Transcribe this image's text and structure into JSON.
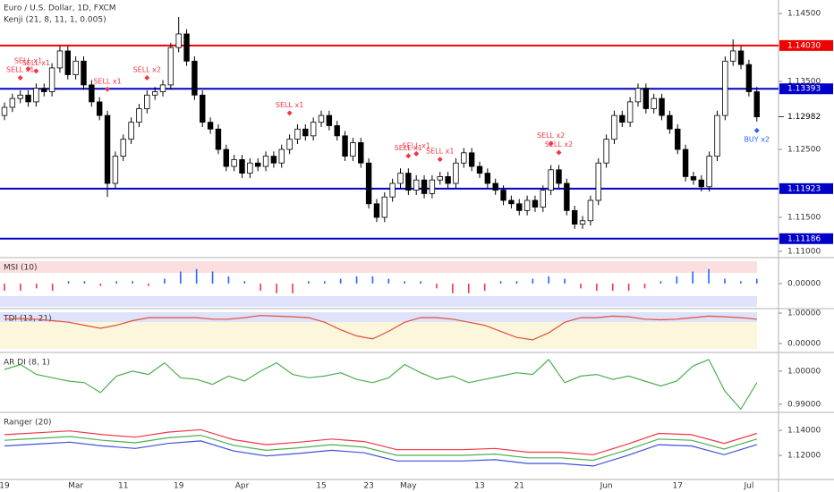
{
  "chart_data": [
    {
      "type": "candlestick",
      "title": "Euro / U.S. Dollar, 1D, FXCM",
      "subtitle": "Kenji (21, 8, 11, 1, 0.005)",
      "categories": [
        "19",
        null,
        null,
        null,
        null,
        null,
        null,
        null,
        null,
        "Mar",
        null,
        null,
        null,
        null,
        null,
        "11",
        null,
        null,
        null,
        null,
        null,
        null,
        "19",
        null,
        null,
        null,
        null,
        null,
        null,
        null,
        "Apr",
        null,
        null,
        null,
        null,
        null,
        null,
        null,
        null,
        null,
        "15",
        null,
        null,
        null,
        null,
        null,
        "23",
        null,
        null,
        null,
        null,
        "May",
        null,
        null,
        null,
        null,
        null,
        null,
        null,
        null,
        "13",
        null,
        null,
        null,
        null,
        "21",
        null,
        null,
        null,
        null,
        null,
        null,
        null,
        null,
        null,
        null,
        "Jun",
        null,
        null,
        null,
        null,
        null,
        null,
        null,
        null,
        "17",
        null,
        null,
        null,
        null,
        null,
        null,
        null,
        null,
        "Jul",
        null
      ],
      "open": [
        1.13,
        1.1312,
        1.1325,
        1.133,
        1.132,
        1.134,
        1.1335,
        1.137,
        1.1395,
        1.136,
        1.138,
        1.1345,
        1.132,
        1.13,
        1.12,
        1.124,
        1.1265,
        1.129,
        1.131,
        1.133,
        1.1335,
        1.1345,
        1.14,
        1.142,
        1.138,
        1.133,
        1.129,
        1.128,
        1.125,
        1.1225,
        1.1235,
        1.1215,
        1.123,
        1.1225,
        1.124,
        1.123,
        1.125,
        1.1265,
        1.128,
        1.127,
        1.129,
        1.13,
        1.1285,
        1.127,
        1.124,
        1.126,
        1.123,
        1.117,
        1.115,
        1.118,
        1.12,
        1.1215,
        1.119,
        1.1205,
        1.1185,
        1.1205,
        1.121,
        1.12,
        1.123,
        1.1245,
        1.1225,
        1.1215,
        1.12,
        1.119,
        1.1175,
        1.117,
        1.116,
        1.1175,
        1.1165,
        1.119,
        1.122,
        1.12,
        1.116,
        1.114,
        1.1145,
        1.1175,
        1.123,
        1.1265,
        1.13,
        1.129,
        1.132,
        1.134,
        1.131,
        1.1325,
        1.13,
        1.128,
        1.125,
        1.121,
        1.1205,
        1.1195,
        1.124,
        1.13,
        1.138,
        1.1395,
        1.1375,
        1.1335
      ],
      "high": [
        1.1319,
        1.1332,
        1.1337,
        1.1337,
        1.1347,
        1.1347,
        1.1377,
        1.1402,
        1.1402,
        1.1387,
        1.1387,
        1.1352,
        1.1327,
        1.1307,
        1.1247,
        1.1272,
        1.1297,
        1.1317,
        1.1337,
        1.1342,
        1.1352,
        1.1407,
        1.1445,
        1.1427,
        1.1387,
        1.1337,
        1.1297,
        1.1287,
        1.1257,
        1.1242,
        1.1242,
        1.1237,
        1.1237,
        1.1247,
        1.1247,
        1.1257,
        1.1272,
        1.1287,
        1.1287,
        1.1297,
        1.1307,
        1.1307,
        1.1292,
        1.1277,
        1.1267,
        1.1267,
        1.1237,
        1.1177,
        1.1187,
        1.1207,
        1.1222,
        1.1222,
        1.1212,
        1.1212,
        1.1212,
        1.1217,
        1.1217,
        1.1237,
        1.1252,
        1.1252,
        1.1232,
        1.1222,
        1.1207,
        1.1197,
        1.1182,
        1.1177,
        1.1182,
        1.1182,
        1.1197,
        1.1227,
        1.1227,
        1.1207,
        1.1167,
        1.1152,
        1.1182,
        1.1237,
        1.1272,
        1.1307,
        1.1307,
        1.1327,
        1.1347,
        1.1347,
        1.1332,
        1.1332,
        1.1307,
        1.1287,
        1.1257,
        1.1217,
        1.1212,
        1.1247,
        1.1307,
        1.1387,
        1.1412,
        1.1402,
        1.1382,
        1.1342
      ],
      "low": [
        1.1293,
        1.1305,
        1.1318,
        1.1313,
        1.1313,
        1.1328,
        1.1328,
        1.1363,
        1.1353,
        1.1353,
        1.1338,
        1.1313,
        1.1293,
        1.118,
        1.1193,
        1.1233,
        1.1258,
        1.1283,
        1.1303,
        1.1323,
        1.1328,
        1.1338,
        1.1393,
        1.1373,
        1.1323,
        1.1283,
        1.1273,
        1.1243,
        1.1218,
        1.1218,
        1.1208,
        1.1208,
        1.1218,
        1.1218,
        1.1223,
        1.1223,
        1.1243,
        1.1258,
        1.1263,
        1.1263,
        1.1283,
        1.1278,
        1.1263,
        1.1233,
        1.1233,
        1.1223,
        1.1163,
        1.1143,
        1.1143,
        1.1173,
        1.1193,
        1.1183,
        1.1183,
        1.1178,
        1.1178,
        1.1198,
        1.1193,
        1.1193,
        1.1223,
        1.1218,
        1.1208,
        1.1193,
        1.1183,
        1.1168,
        1.1163,
        1.1153,
        1.1153,
        1.1158,
        1.1158,
        1.1183,
        1.1193,
        1.1153,
        1.1133,
        1.1133,
        1.1138,
        1.1168,
        1.1223,
        1.1258,
        1.1283,
        1.1283,
        1.1313,
        1.1303,
        1.1303,
        1.1293,
        1.1273,
        1.1243,
        1.1203,
        1.1198,
        1.1188,
        1.1188,
        1.1233,
        1.1293,
        1.1373,
        1.1368,
        1.1328,
        1.1291
      ],
      "close": [
        1.1312,
        1.1325,
        1.133,
        1.132,
        1.134,
        1.1335,
        1.137,
        1.1395,
        1.136,
        1.138,
        1.1345,
        1.132,
        1.13,
        1.12,
        1.124,
        1.1265,
        1.129,
        1.131,
        1.133,
        1.1335,
        1.1345,
        1.14,
        1.142,
        1.138,
        1.133,
        1.129,
        1.128,
        1.125,
        1.1225,
        1.1235,
        1.1215,
        1.123,
        1.1225,
        1.124,
        1.123,
        1.125,
        1.1265,
        1.128,
        1.127,
        1.129,
        1.13,
        1.1285,
        1.127,
        1.124,
        1.126,
        1.123,
        1.117,
        1.115,
        1.118,
        1.12,
        1.1215,
        1.119,
        1.1205,
        1.1185,
        1.1205,
        1.121,
        1.12,
        1.123,
        1.1245,
        1.1225,
        1.1215,
        1.12,
        1.119,
        1.1175,
        1.117,
        1.116,
        1.1175,
        1.1165,
        1.119,
        1.122,
        1.12,
        1.116,
        1.114,
        1.1145,
        1.1175,
        1.123,
        1.1265,
        1.13,
        1.129,
        1.132,
        1.134,
        1.131,
        1.1325,
        1.13,
        1.128,
        1.125,
        1.121,
        1.1205,
        1.1195,
        1.124,
        1.13,
        1.138,
        1.1395,
        1.1375,
        1.1335,
        1.1298
      ],
      "up_color": "#ffffff",
      "down_color": "#000000",
      "ylim": [
        1.1092,
        1.147
      ],
      "yticks": [
        {
          "value": 1.145,
          "label": "1.14500"
        },
        {
          "value": 1.135,
          "label": "1.13500"
        },
        {
          "value": 1.125,
          "label": "1.12500"
        },
        {
          "value": 1.115,
          "label": "1.11500"
        },
        {
          "value": 1.11,
          "label": "1.11000"
        }
      ],
      "levels": [
        {
          "value": 1.1403,
          "label": "1.14030",
          "color": "#f00000"
        },
        {
          "value": 1.13393,
          "label": "1.13393",
          "color": "#0000c8"
        },
        {
          "value": 1.11923,
          "label": "1.11923",
          "color": "#0000c8"
        },
        {
          "value": 1.11186,
          "label": "1.11186",
          "color": "#0000c8"
        }
      ],
      "last_price": {
        "value": 1.12982,
        "label": "1.12982"
      },
      "signals": [
        {
          "text": "SELL x1",
          "bar": 2,
          "color": "#f23645"
        },
        {
          "text": "SELL x1",
          "bar": 3,
          "color": "#f23645"
        },
        {
          "text": "SELL x1",
          "bar": 4,
          "color": "#f23645"
        },
        {
          "text": "SELL x1",
          "bar": 13,
          "color": "#f23645"
        },
        {
          "text": "SELL x2",
          "bar": 18,
          "color": "#f23645"
        },
        {
          "text": "SELL x1",
          "bar": 36,
          "color": "#f23645"
        },
        {
          "text": "SELL x1",
          "bar": 51,
          "color": "#f23645"
        },
        {
          "text": "SELL x1",
          "bar": 52,
          "color": "#f23645"
        },
        {
          "text": "SELL x1",
          "bar": 55,
          "color": "#f23645"
        },
        {
          "text": "SELL x2",
          "bar": 69,
          "color": "#f23645"
        },
        {
          "text": "SELL x2",
          "bar": 70,
          "color": "#f23645"
        },
        {
          "text": "BUY x2",
          "bar": 95,
          "color": "#2962ff"
        }
      ]
    },
    {
      "type": "bar",
      "title": "MSI (10)",
      "ylim": [
        -1,
        1
      ],
      "yticks": [
        {
          "value": 0,
          "label": "0.00000"
        }
      ],
      "up_color": "#2962ff",
      "down_color": "#f23645",
      "values": [
        -0.3,
        -0.3,
        -0.2,
        -0.3,
        0.1,
        0.1,
        -0.1,
        0.1,
        0.1,
        -0.1,
        0.2,
        0.5,
        0.6,
        0.5,
        0.3,
        0.1,
        -0.3,
        -0.4,
        -0.4,
        0.1,
        0.1,
        0.2,
        0.3,
        0.3,
        0.2,
        0.1,
        0.1,
        -0.2,
        -0.4,
        -0.4,
        -0.3,
        0.1,
        0.1,
        0.2,
        0.3,
        0.2,
        -0.2,
        -0.3,
        -0.3,
        -0.3,
        -0.2,
        0.1,
        0.3,
        0.5,
        0.6,
        0.2,
        0.1,
        0.2
      ]
    },
    {
      "type": "line",
      "title": "TDI (13, 21)",
      "ylim": [
        -0.265,
        1.088
      ],
      "yticks": [
        {
          "value": 1,
          "label": "1.00000"
        },
        {
          "value": 0,
          "label": "0.00000"
        }
      ],
      "series": [
        {
          "color": "#e0503c",
          "values": [
            0.8,
            0.82,
            0.8,
            0.75,
            0.7,
            0.6,
            0.5,
            0.6,
            0.75,
            0.85,
            0.85,
            0.85,
            0.85,
            0.8,
            0.8,
            0.85,
            0.92,
            0.9,
            0.88,
            0.85,
            0.7,
            0.45,
            0.25,
            0.15,
            0.4,
            0.7,
            0.85,
            0.85,
            0.8,
            0.7,
            0.6,
            0.4,
            0.2,
            0.12,
            0.35,
            0.7,
            0.85,
            0.85,
            0.9,
            0.88,
            0.8,
            0.78,
            0.8,
            0.85,
            0.9,
            0.88,
            0.85,
            0.8
          ]
        }
      ]
    },
    {
      "type": "line",
      "title": "AR DI (8, 1)",
      "ylim": [
        0.9878,
        1.0051
      ],
      "yticks": [
        {
          "value": 1,
          "label": "1.00000"
        },
        {
          "value": 0.99,
          "label": "0.99000"
        }
      ],
      "series": [
        {
          "color": "#4caf50",
          "values": [
            1.0005,
            1.002,
            0.999,
            0.998,
            0.997,
            0.9965,
            0.9935,
            0.9985,
            1.0,
            0.999,
            1.0025,
            0.998,
            0.9975,
            0.996,
            0.9985,
            0.997,
            1.0,
            1.0025,
            0.999,
            0.998,
            0.9985,
            0.9995,
            0.9975,
            0.9965,
            0.998,
            1.002,
            0.9995,
            0.9975,
            0.9985,
            0.9965,
            0.9975,
            0.9985,
            0.9995,
            0.999,
            1.0035,
            0.9965,
            0.9985,
            0.999,
            0.9975,
            0.9985,
            0.997,
            0.9955,
            0.997,
            1.0015,
            1.0035,
            0.994,
            0.9885,
            0.9965
          ]
        }
      ]
    },
    {
      "type": "line",
      "title": "Ranger (20)",
      "ylim": [
        1.1014,
        1.1529
      ],
      "yticks": [
        {
          "value": 1.14,
          "label": "1.14000"
        },
        {
          "value": 1.12,
          "label": "1.12000"
        }
      ],
      "series": [
        {
          "color": "#f23645",
          "values": [
            1.1365,
            1.138,
            1.1395,
            1.1365,
            1.1345,
            1.1385,
            1.1405,
            1.1325,
            1.1285,
            1.1305,
            1.133,
            1.131,
            1.1245,
            1.1245,
            1.1245,
            1.1255,
            1.1225,
            1.1225,
            1.1205,
            1.1285,
            1.1375,
            1.1365,
            1.1295,
            1.1375
          ]
        },
        {
          "color": "#4caf50",
          "values": [
            1.132,
            1.1335,
            1.135,
            1.132,
            1.13,
            1.134,
            1.136,
            1.128,
            1.124,
            1.126,
            1.1285,
            1.1265,
            1.12,
            1.12,
            1.12,
            1.121,
            1.118,
            1.118,
            1.116,
            1.124,
            1.133,
            1.132,
            1.125,
            1.133
          ]
        },
        {
          "color": "#3f51d8",
          "values": [
            1.1275,
            1.129,
            1.1305,
            1.1275,
            1.1255,
            1.1295,
            1.1315,
            1.1235,
            1.1195,
            1.1215,
            1.124,
            1.122,
            1.1155,
            1.1155,
            1.1155,
            1.1165,
            1.1135,
            1.1135,
            1.1115,
            1.1195,
            1.1285,
            1.1275,
            1.1205,
            1.1285
          ]
        }
      ]
    }
  ]
}
